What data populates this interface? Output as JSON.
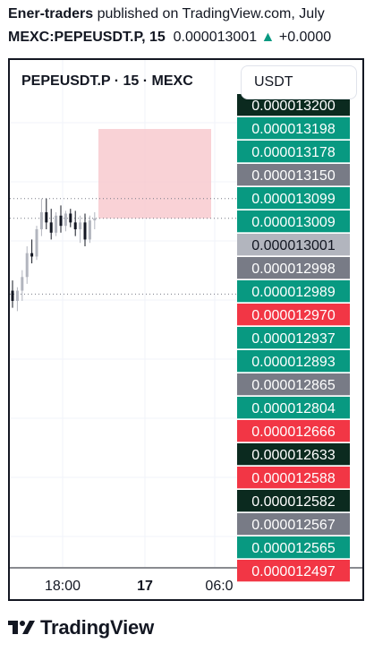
{
  "header": {
    "author": "Ener-traders",
    "published_on": "published on TradingView.com, July",
    "symbol_line": "MEXC:PEPEUSDT.P, 15",
    "price": "0.000013001",
    "change_arrow": "▲",
    "change": "+0.0000"
  },
  "chart_header": {
    "title": "PEPEUSDT.P · 15 · MEXC",
    "currency": "USDT"
  },
  "footer": {
    "brand": "TradingView",
    "logo_icon": "tradingview-logo-icon"
  },
  "colors": {
    "up": "#089981",
    "down": "#f23645",
    "neutral": "#787b86",
    "current": "#b2b5be",
    "dark": "#0b2a1f",
    "stop_zone": "#f7c7cc",
    "target_zone": "#ccd8d6"
  },
  "chart_data": {
    "type": "candlestick",
    "symbol": "MEXC:PEPEUSDT.P",
    "interval": "15",
    "x_tick_labels": [
      "18:00",
      "17",
      "06:0"
    ],
    "y_range": [
      1.249e-05,
      1.322e-05
    ],
    "current_price": 1.3001e-05,
    "stop_zone": {
      "from": 1.3001e-05,
      "to": 1.3132e-05
    },
    "target_zone": {
      "from": 1.2868e-05,
      "to": 1.3001e-05
    },
    "reference_lines": [
      1.303e-05,
      1.3001e-05,
      1.289e-05
    ],
    "price_tags": [
      {
        "value": "0.000013200",
        "color": "dark"
      },
      {
        "value": "0.000013198",
        "color": "up"
      },
      {
        "value": "0.000013178",
        "color": "up"
      },
      {
        "value": "0.000013150",
        "color": "neutral"
      },
      {
        "value": "0.000013099",
        "color": "up"
      },
      {
        "value": "0.000013009",
        "color": "up"
      },
      {
        "value": "0.000013001",
        "color": "current"
      },
      {
        "value": "0.000012998",
        "color": "neutral"
      },
      {
        "value": "0.000012989",
        "color": "up"
      },
      {
        "value": "0.000012970",
        "color": "down"
      },
      {
        "value": "0.000012937",
        "color": "up"
      },
      {
        "value": "0.000012893",
        "color": "up"
      },
      {
        "value": "0.000012865",
        "color": "neutral"
      },
      {
        "value": "0.000012804",
        "color": "up"
      },
      {
        "value": "0.000012666",
        "color": "down"
      },
      {
        "value": "0.000012633",
        "color": "dark"
      },
      {
        "value": "0.000012588",
        "color": "down"
      },
      {
        "value": "0.000012582",
        "color": "dark"
      },
      {
        "value": "0.000012567",
        "color": "neutral"
      },
      {
        "value": "0.000012565",
        "color": "up"
      },
      {
        "value": "0.000012497",
        "color": "down"
      }
    ],
    "candles": [
      {
        "o": 1.2895e-05,
        "h": 1.291e-05,
        "l": 1.287e-05,
        "c": 1.288e-05
      },
      {
        "o": 1.288e-05,
        "h": 1.29e-05,
        "l": 1.2865e-05,
        "c": 1.2895e-05
      },
      {
        "o": 1.2895e-05,
        "h": 1.2925e-05,
        "l": 1.288e-05,
        "c": 1.2915e-05
      },
      {
        "o": 1.2915e-05,
        "h": 1.296e-05,
        "l": 1.2905e-05,
        "c": 1.295e-05
      },
      {
        "o": 1.295e-05,
        "h": 1.297e-05,
        "l": 1.2935e-05,
        "c": 1.2945e-05
      },
      {
        "o": 1.2945e-05,
        "h": 1.299e-05,
        "l": 1.294e-05,
        "c": 1.2985e-05
      },
      {
        "o": 1.2985e-05,
        "h": 1.303e-05,
        "l": 1.2975e-05,
        "c": 1.301e-05
      },
      {
        "o": 1.301e-05,
        "h": 1.303e-05,
        "l": 1.2985e-05,
        "c": 1.2995e-05
      },
      {
        "o": 1.2995e-05,
        "h": 1.3015e-05,
        "l": 1.297e-05,
        "c": 1.298e-05
      },
      {
        "o": 1.298e-05,
        "h": 1.301e-05,
        "l": 1.2975e-05,
        "c": 1.3005e-05
      },
      {
        "o": 1.3005e-05,
        "h": 1.302e-05,
        "l": 1.298e-05,
        "c": 1.299e-05
      },
      {
        "o": 1.299e-05,
        "h": 1.3012e-05,
        "l": 1.2982e-05,
        "c": 1.3008e-05
      },
      {
        "o": 1.3008e-05,
        "h": 1.3015e-05,
        "l": 1.2988e-05,
        "c": 1.2995e-05
      },
      {
        "o": 1.2995e-05,
        "h": 1.3012e-05,
        "l": 1.2975e-05,
        "c": 1.2985e-05
      },
      {
        "o": 1.2985e-05,
        "h": 1.3005e-05,
        "l": 1.2965e-05,
        "c": 1.2995e-05
      },
      {
        "o": 1.2995e-05,
        "h": 1.3008e-05,
        "l": 1.296e-05,
        "c": 1.297e-05
      },
      {
        "o": 1.297e-05,
        "h": 1.3005e-05,
        "l": 1.2965e-05,
        "c": 1.2998e-05
      },
      {
        "o": 1.2998e-05,
        "h": 1.301e-05,
        "l": 1.2985e-05,
        "c": 1.3001e-05
      }
    ]
  }
}
